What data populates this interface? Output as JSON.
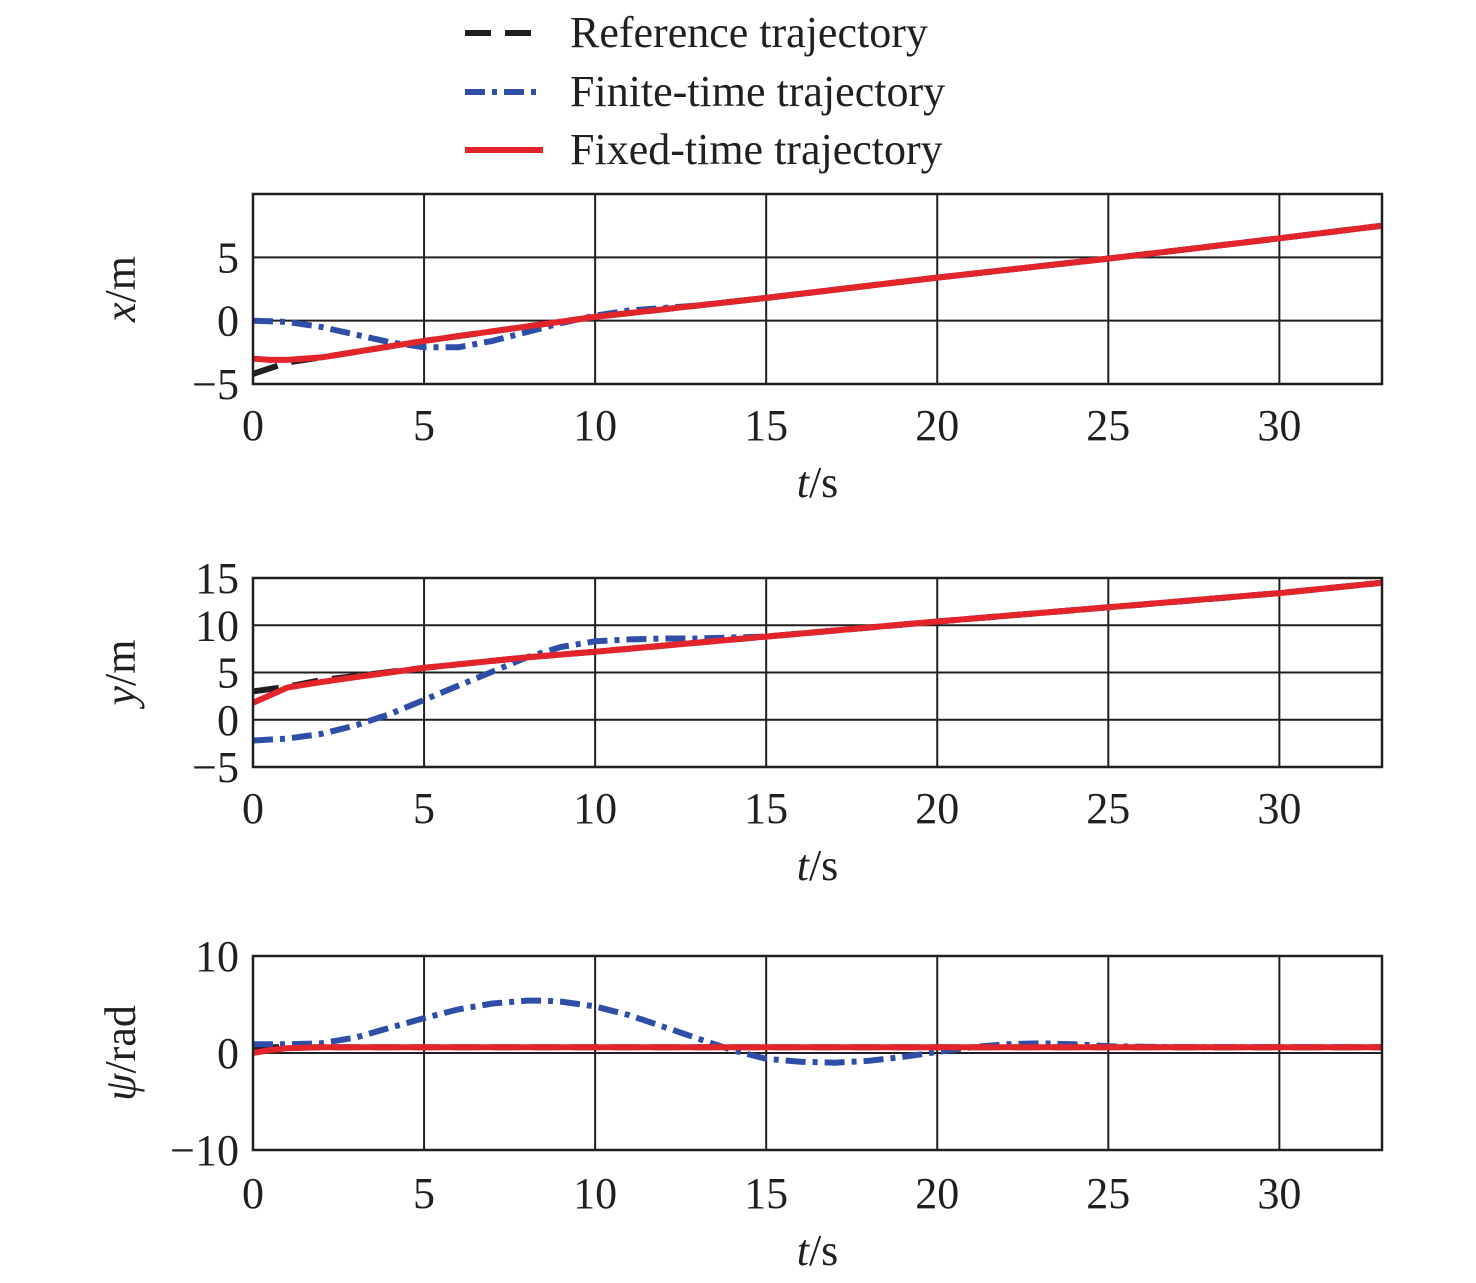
{
  "legend": {
    "entries": [
      {
        "label": "Reference trajectory",
        "style": "dashed",
        "color": "#231f20"
      },
      {
        "label": "Finite-time trajectory",
        "style": "dashdot",
        "color": "#2e4ea8"
      },
      {
        "label": "Fixed-time trajectory",
        "style": "solid",
        "color": "#e3242b"
      }
    ]
  },
  "chart_data": [
    {
      "type": "line",
      "xlabel_var": "t",
      "xlabel_unit": "/s",
      "ylabel_var": "x",
      "ylabel_unit": "/m",
      "xlim": [
        0,
        33
      ],
      "ylim": [
        -5,
        10
      ],
      "xticks": [
        0,
        5,
        10,
        15,
        20,
        25,
        30
      ],
      "yticks": [
        -5,
        0,
        5
      ],
      "ytick_labels": [
        "−5",
        "0",
        "5"
      ],
      "grid": true,
      "series": [
        {
          "name": "Reference trajectory",
          "x": [
            0,
            1,
            2,
            5,
            10,
            15,
            20,
            25,
            30,
            33
          ],
          "y": [
            -4.2,
            -3.3,
            -2.9,
            -1.6,
            0.3,
            1.8,
            3.4,
            4.9,
            6.5,
            7.5
          ]
        },
        {
          "name": "Finite-time trajectory",
          "x": [
            0,
            1,
            2,
            3,
            4,
            5,
            6,
            7,
            8,
            9,
            10,
            11,
            12,
            13,
            15,
            20,
            25,
            30,
            33
          ],
          "y": [
            0.0,
            -0.1,
            -0.5,
            -1.1,
            -1.7,
            -2.1,
            -2.1,
            -1.6,
            -0.9,
            -0.2,
            0.4,
            0.8,
            1.0,
            1.2,
            1.8,
            3.4,
            4.9,
            6.5,
            7.5
          ]
        },
        {
          "name": "Fixed-time trajectory",
          "x": [
            0,
            0.5,
            1,
            2,
            5,
            10,
            15,
            20,
            25,
            30,
            33
          ],
          "y": [
            -3.0,
            -3.1,
            -3.1,
            -2.9,
            -1.6,
            0.3,
            1.8,
            3.4,
            4.9,
            6.5,
            7.5
          ]
        }
      ]
    },
    {
      "type": "line",
      "xlabel_var": "t",
      "xlabel_unit": "/s",
      "ylabel_var": "y",
      "ylabel_unit": "/m",
      "xlim": [
        0,
        33
      ],
      "ylim": [
        -5,
        15
      ],
      "xticks": [
        0,
        5,
        10,
        15,
        20,
        25,
        30
      ],
      "yticks": [
        -5,
        0,
        5,
        10,
        15
      ],
      "ytick_labels": [
        "−5",
        "0",
        "5",
        "10",
        "15"
      ],
      "grid": true,
      "series": [
        {
          "name": "Reference trajectory",
          "x": [
            0,
            1,
            2,
            5,
            8,
            10,
            15,
            20,
            25,
            30,
            33
          ],
          "y": [
            3.0,
            3.5,
            4.2,
            5.5,
            6.6,
            7.2,
            8.8,
            10.4,
            11.9,
            13.4,
            14.5
          ]
        },
        {
          "name": "Finite-time trajectory",
          "x": [
            0,
            1,
            2,
            3,
            4,
            5,
            6,
            7,
            8,
            9,
            10,
            11,
            12,
            13,
            14,
            15,
            20,
            25,
            30,
            33
          ],
          "y": [
            -2.2,
            -2.0,
            -1.5,
            -0.6,
            0.6,
            2.1,
            3.6,
            5.1,
            6.6,
            7.7,
            8.3,
            8.5,
            8.6,
            8.6,
            8.7,
            8.8,
            10.4,
            11.9,
            13.4,
            14.5
          ]
        },
        {
          "name": "Fixed-time trajectory",
          "x": [
            0,
            0.5,
            1,
            2,
            3,
            5,
            8,
            10,
            15,
            20,
            25,
            30,
            33
          ],
          "y": [
            1.8,
            2.6,
            3.4,
            4.0,
            4.5,
            5.5,
            6.6,
            7.2,
            8.8,
            10.4,
            11.9,
            13.4,
            14.5
          ]
        }
      ]
    },
    {
      "type": "line",
      "xlabel_var": "t",
      "xlabel_unit": "/s",
      "ylabel_var": "ψ",
      "ylabel_unit": "/rad",
      "xlim": [
        0,
        33
      ],
      "ylim": [
        -10,
        10
      ],
      "xticks": [
        0,
        5,
        10,
        15,
        20,
        25,
        30
      ],
      "yticks": [
        -10,
        0,
        10
      ],
      "ytick_labels": [
        "−10",
        "0",
        "10"
      ],
      "grid": true,
      "series": [
        {
          "name": "Reference trajectory",
          "x": [
            0,
            33
          ],
          "y": [
            0.6,
            0.6
          ]
        },
        {
          "name": "Finite-time trajectory",
          "x": [
            0,
            1,
            2,
            3,
            4,
            5,
            6,
            7,
            8,
            8.5,
            9,
            10,
            11,
            12,
            13,
            14,
            15,
            16,
            17,
            18,
            19,
            20,
            21,
            22,
            23,
            24,
            25,
            27,
            30,
            33
          ],
          "y": [
            0.9,
            0.9,
            1.0,
            1.6,
            2.6,
            3.6,
            4.5,
            5.1,
            5.4,
            5.4,
            5.3,
            4.8,
            3.9,
            2.7,
            1.5,
            0.3,
            -0.6,
            -0.9,
            -1.0,
            -0.8,
            -0.4,
            0.1,
            0.6,
            0.9,
            1.0,
            0.9,
            0.7,
            0.6,
            0.6,
            0.6
          ]
        },
        {
          "name": "Fixed-time trajectory",
          "x": [
            0,
            0.5,
            1,
            2,
            33
          ],
          "y": [
            0.0,
            0.3,
            0.5,
            0.6,
            0.6
          ]
        }
      ]
    }
  ]
}
